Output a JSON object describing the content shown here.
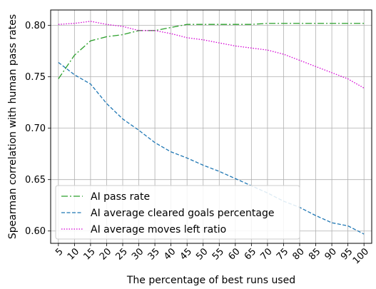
{
  "chart_data": {
    "type": "line",
    "xlabel": "The percentage of best runs used",
    "ylabel": "Spearman correlation with human pass rates",
    "x": [
      5,
      10,
      15,
      20,
      25,
      30,
      35,
      40,
      45,
      50,
      55,
      60,
      65,
      70,
      75,
      80,
      85,
      90,
      95,
      100
    ],
    "xticks": [
      "5",
      "10",
      "15",
      "20",
      "25",
      "30",
      "35",
      "40",
      "45",
      "50",
      "55",
      "60",
      "65",
      "70",
      "75",
      "80",
      "85",
      "90",
      "95",
      "100"
    ],
    "yticks": [
      "0.60",
      "0.65",
      "0.70",
      "0.75",
      "0.80"
    ],
    "xlim": [
      2.6,
      102.4
    ],
    "ylim": [
      0.588,
      0.815
    ],
    "grid": true,
    "legend_position": "lower-left",
    "series": [
      {
        "name": "AI pass rate",
        "color": "#2ca02c",
        "dash": "dash-dot",
        "values": [
          0.748,
          0.771,
          0.785,
          0.789,
          0.791,
          0.795,
          0.795,
          0.798,
          0.801,
          0.801,
          0.801,
          0.801,
          0.801,
          0.802,
          0.802,
          0.802,
          0.802,
          0.802,
          0.802,
          0.802
        ]
      },
      {
        "name": "AI average cleared goals percentage",
        "color": "#1f77b4",
        "dash": "dashed",
        "values": [
          0.764,
          0.752,
          0.743,
          0.724,
          0.709,
          0.698,
          0.686,
          0.677,
          0.671,
          0.664,
          0.658,
          0.651,
          0.644,
          0.637,
          0.629,
          0.623,
          0.615,
          0.608,
          0.605,
          0.597
        ]
      },
      {
        "name": "AI average moves left ratio",
        "color": "#d400d4",
        "dash": "dotted",
        "values": [
          0.801,
          0.802,
          0.804,
          0.801,
          0.799,
          0.795,
          0.795,
          0.792,
          0.788,
          0.786,
          0.783,
          0.78,
          0.778,
          0.776,
          0.772,
          0.766,
          0.76,
          0.754,
          0.748,
          0.739
        ]
      }
    ]
  }
}
